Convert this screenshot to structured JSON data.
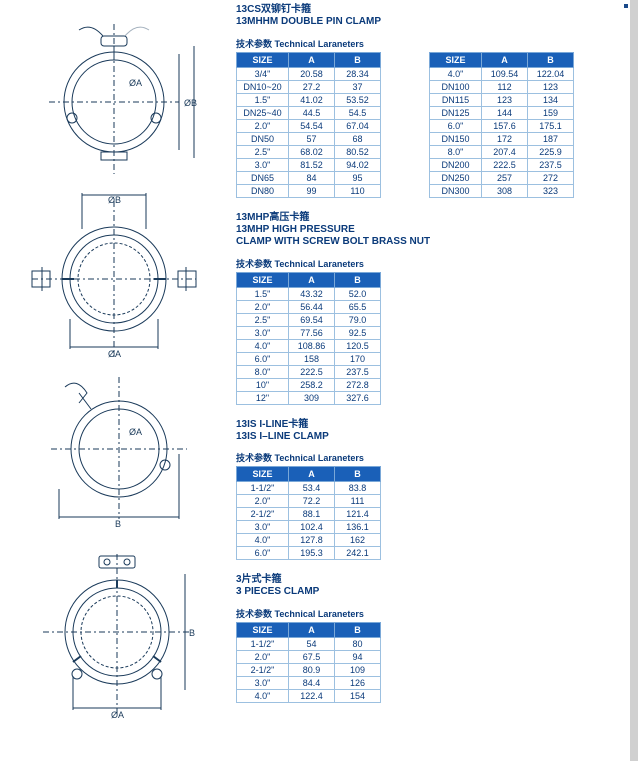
{
  "colors": {
    "header_bg": "#1a60b8",
    "header_fg": "#ffffff",
    "text": "#0a3a7a",
    "border": "#9cc0e0"
  },
  "param_label": "技术参数 Technical Laraneters",
  "sections": [
    {
      "title_cn": "13CS双铆钉卡箍",
      "title_en": "13MHHM DOUBLE PIN CLAMP",
      "headers": [
        "SIZE",
        "A",
        "B"
      ],
      "tables": [
        [
          [
            "3/4\"",
            "20.58",
            "28.34"
          ],
          [
            "DN10~20",
            "27.2",
            "37"
          ],
          [
            "1.5\"",
            "41.02",
            "53.52"
          ],
          [
            "DN25~40",
            "44.5",
            "54.5"
          ],
          [
            "2.0\"",
            "54.54",
            "67.04"
          ],
          [
            "DN50",
            "57",
            "68"
          ],
          [
            "2.5\"",
            "68.02",
            "80.52"
          ],
          [
            "3.0\"",
            "81.52",
            "94.02"
          ],
          [
            "DN65",
            "84",
            "95"
          ],
          [
            "DN80",
            "99",
            "110"
          ]
        ],
        [
          [
            "4.0\"",
            "109.54",
            "122.04"
          ],
          [
            "DN100",
            "112",
            "123"
          ],
          [
            "DN115",
            "123",
            "134"
          ],
          [
            "DN125",
            "144",
            "159"
          ],
          [
            "6.0\"",
            "157.6",
            "175.1"
          ],
          [
            "DN150",
            "172",
            "187"
          ],
          [
            "8.0\"",
            "207.4",
            "225.9"
          ],
          [
            "DN200",
            "222.5",
            "237.5"
          ],
          [
            "DN250",
            "257",
            "272"
          ],
          [
            "DN300",
            "308",
            "323"
          ]
        ]
      ]
    },
    {
      "title_cn": "13MHP高压卡箍",
      "title_en": "13MHP HIGH PRESSURE\nCLAMP WITH SCREW BOLT BRASS NUT",
      "headers": [
        "SIZE",
        "A",
        "B"
      ],
      "tables": [
        [
          [
            "1.5\"",
            "43.32",
            "52.0"
          ],
          [
            "2.0\"",
            "56.44",
            "65.5"
          ],
          [
            "2.5\"",
            "69.54",
            "79.0"
          ],
          [
            "3.0\"",
            "77.56",
            "92.5"
          ],
          [
            "4.0\"",
            "108.86",
            "120.5"
          ],
          [
            "6.0\"",
            "158",
            "170"
          ],
          [
            "8.0\"",
            "222.5",
            "237.5"
          ],
          [
            "10\"",
            "258.2",
            "272.8"
          ],
          [
            "12\"",
            "309",
            "327.6"
          ]
        ]
      ]
    },
    {
      "title_cn": "13IS I-LINE卡箍",
      "title_en": "13IS I–LINE CLAMP",
      "headers": [
        "SIZE",
        "A",
        "B"
      ],
      "tables": [
        [
          [
            "1-1/2\"",
            "53.4",
            "83.8"
          ],
          [
            "2.0\"",
            "72.2",
            "111"
          ],
          [
            "2-1/2\"",
            "88.1",
            "121.4"
          ],
          [
            "3.0\"",
            "102.4",
            "136.1"
          ],
          [
            "4.0\"",
            "127.8",
            "162"
          ],
          [
            "6.0\"",
            "195.3",
            "242.1"
          ]
        ]
      ]
    },
    {
      "title_cn": "3片式卡箍",
      "title_en": "3 PIECES CLAMP",
      "headers": [
        "SIZE",
        "A",
        "B"
      ],
      "tables": [
        [
          [
            "1-1/2\"",
            "54",
            "80"
          ],
          [
            "2.0\"",
            "67.5",
            "94"
          ],
          [
            "2-1/2\"",
            "80.9",
            "109"
          ],
          [
            "3.0\"",
            "84.4",
            "126"
          ],
          [
            "4.0\"",
            "122.4",
            "154"
          ]
        ]
      ]
    }
  ]
}
